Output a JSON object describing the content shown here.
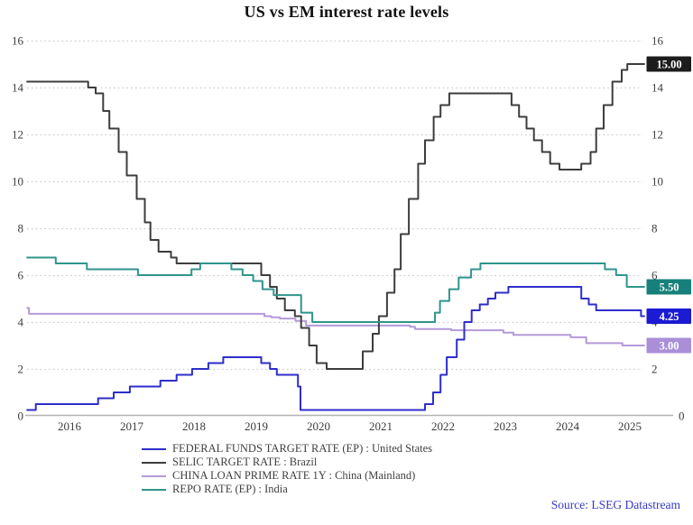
{
  "title": "US vs EM interest rate levels",
  "source_credit": "Source: LSEG Datastream",
  "chart_data": {
    "type": "line",
    "title": "US vs EM interest rate levels",
    "grid": "horizontal-dotted",
    "legend_position": "bottom-left",
    "y_axis": {
      "min": 0,
      "max": 16,
      "tick_step": 2,
      "ticks": [
        0,
        2,
        4,
        6,
        8,
        10,
        12,
        14,
        16
      ],
      "shown_on": "both-sides"
    },
    "x_axis": {
      "domain": [
        2015.82,
        2025.73
      ],
      "year_labels": [
        "2016",
        "2017",
        "2018",
        "2019",
        "2020",
        "2021",
        "2022",
        "2023",
        "2024",
        "2025"
      ],
      "years": [
        2016,
        2017,
        2018,
        2019,
        2020,
        2021,
        2022,
        2023,
        2024,
        2025
      ]
    },
    "series": [
      {
        "name": "FEDERAL FUNDS TARGET RATE (EP) : United States",
        "color": "#2e2ecb",
        "end_label": "4.25",
        "end_label_bg": "#1b1bd4",
        "end_value": 4.25,
        "points": [
          [
            2015.82,
            0.25
          ],
          [
            2015.96,
            0.5
          ],
          [
            2016.96,
            0.75
          ],
          [
            2017.21,
            1.0
          ],
          [
            2017.47,
            1.25
          ],
          [
            2017.96,
            1.5
          ],
          [
            2018.22,
            1.75
          ],
          [
            2018.47,
            2.0
          ],
          [
            2018.73,
            2.25
          ],
          [
            2018.97,
            2.5
          ],
          [
            2019.58,
            2.25
          ],
          [
            2019.72,
            2.0
          ],
          [
            2019.83,
            1.75
          ],
          [
            2020.17,
            1.25
          ],
          [
            2020.21,
            0.25
          ],
          [
            2022.21,
            0.5
          ],
          [
            2022.34,
            1.0
          ],
          [
            2022.46,
            1.75
          ],
          [
            2022.56,
            2.5
          ],
          [
            2022.72,
            3.25
          ],
          [
            2022.84,
            4.0
          ],
          [
            2022.96,
            4.5
          ],
          [
            2023.09,
            4.75
          ],
          [
            2023.22,
            5.0
          ],
          [
            2023.34,
            5.25
          ],
          [
            2023.55,
            5.5
          ],
          [
            2024.72,
            5.0
          ],
          [
            2024.84,
            4.75
          ],
          [
            2024.96,
            4.5
          ],
          [
            2025.68,
            4.25
          ],
          [
            2025.73,
            4.25
          ]
        ]
      },
      {
        "name": "SELIC TARGET RATE : Brazil",
        "color": "#3d3d3d",
        "end_label": "15.00",
        "end_label_bg": "#1c1c1c",
        "end_value": 15.0,
        "points": [
          [
            2015.82,
            14.25
          ],
          [
            2016.8,
            14.0
          ],
          [
            2016.92,
            13.75
          ],
          [
            2017.04,
            13.0
          ],
          [
            2017.14,
            12.25
          ],
          [
            2017.29,
            11.25
          ],
          [
            2017.42,
            10.25
          ],
          [
            2017.58,
            9.25
          ],
          [
            2017.71,
            8.25
          ],
          [
            2017.8,
            7.5
          ],
          [
            2017.93,
            7.0
          ],
          [
            2018.13,
            6.75
          ],
          [
            2018.22,
            6.5
          ],
          [
            2019.58,
            6.0
          ],
          [
            2019.72,
            5.5
          ],
          [
            2019.83,
            5.0
          ],
          [
            2019.96,
            4.5
          ],
          [
            2020.12,
            4.25
          ],
          [
            2020.22,
            3.75
          ],
          [
            2020.35,
            3.0
          ],
          [
            2020.47,
            2.25
          ],
          [
            2020.63,
            2.0
          ],
          [
            2021.21,
            2.75
          ],
          [
            2021.37,
            3.5
          ],
          [
            2021.47,
            4.25
          ],
          [
            2021.6,
            5.25
          ],
          [
            2021.72,
            6.25
          ],
          [
            2021.82,
            7.75
          ],
          [
            2021.95,
            9.25
          ],
          [
            2022.1,
            10.75
          ],
          [
            2022.21,
            11.75
          ],
          [
            2022.35,
            12.75
          ],
          [
            2022.46,
            13.25
          ],
          [
            2022.6,
            13.75
          ],
          [
            2023.6,
            13.25
          ],
          [
            2023.72,
            12.75
          ],
          [
            2023.84,
            12.25
          ],
          [
            2023.96,
            11.75
          ],
          [
            2024.09,
            11.25
          ],
          [
            2024.22,
            10.75
          ],
          [
            2024.37,
            10.5
          ],
          [
            2024.72,
            10.75
          ],
          [
            2024.87,
            11.25
          ],
          [
            2024.96,
            12.25
          ],
          [
            2025.08,
            13.25
          ],
          [
            2025.22,
            14.25
          ],
          [
            2025.37,
            14.75
          ],
          [
            2025.46,
            15.0
          ],
          [
            2025.73,
            15.0
          ]
        ]
      },
      {
        "name": "CHINA LOAN PRIME RATE 1Y : China (Mainland)",
        "color": "#b49ad9",
        "end_label": "3.00",
        "end_label_bg": "#aa8fd8",
        "end_value": 3.0,
        "points": [
          [
            2015.82,
            4.6
          ],
          [
            2015.85,
            4.35
          ],
          [
            2019.63,
            4.25
          ],
          [
            2019.74,
            4.2
          ],
          [
            2019.88,
            4.15
          ],
          [
            2020.13,
            4.05
          ],
          [
            2020.3,
            3.85
          ],
          [
            2021.97,
            3.8
          ],
          [
            2022.05,
            3.7
          ],
          [
            2022.63,
            3.65
          ],
          [
            2023.47,
            3.55
          ],
          [
            2023.63,
            3.45
          ],
          [
            2024.55,
            3.35
          ],
          [
            2024.8,
            3.1
          ],
          [
            2025.38,
            3.0
          ],
          [
            2025.73,
            3.0
          ]
        ]
      },
      {
        "name": "REPO RATE (EP) : India",
        "color": "#2f958c",
        "end_label": "5.50",
        "end_label_bg": "#17807a",
        "end_value": 5.5,
        "points": [
          [
            2015.82,
            6.75
          ],
          [
            2016.28,
            6.5
          ],
          [
            2016.78,
            6.25
          ],
          [
            2017.6,
            6.0
          ],
          [
            2018.46,
            6.25
          ],
          [
            2018.6,
            6.5
          ],
          [
            2019.1,
            6.25
          ],
          [
            2019.28,
            6.0
          ],
          [
            2019.45,
            5.75
          ],
          [
            2019.6,
            5.4
          ],
          [
            2019.78,
            5.15
          ],
          [
            2020.22,
            4.4
          ],
          [
            2020.4,
            4.0
          ],
          [
            2022.37,
            4.4
          ],
          [
            2022.45,
            4.9
          ],
          [
            2022.6,
            5.4
          ],
          [
            2022.75,
            5.9
          ],
          [
            2022.95,
            6.25
          ],
          [
            2023.1,
            6.5
          ],
          [
            2025.1,
            6.25
          ],
          [
            2025.28,
            6.0
          ],
          [
            2025.45,
            5.5
          ],
          [
            2025.73,
            5.5
          ]
        ]
      }
    ]
  }
}
